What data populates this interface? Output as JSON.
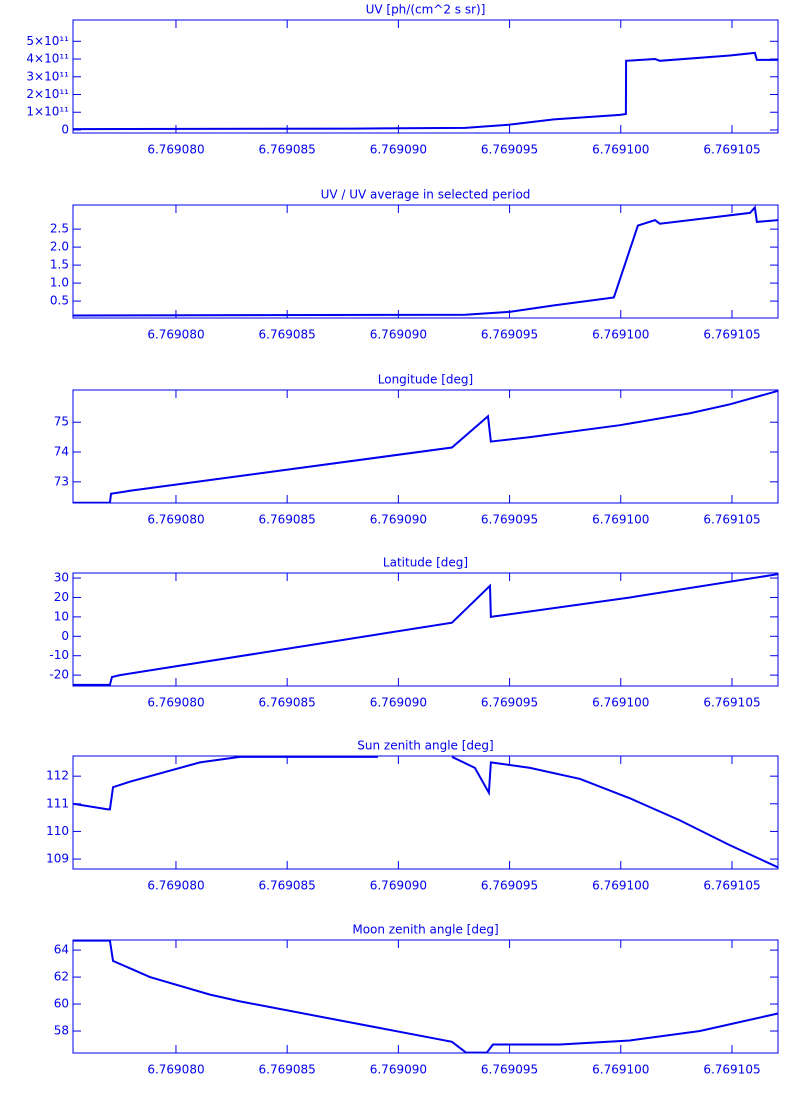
{
  "chart_data": [
    {
      "type": "line",
      "title": "UV [ph/(cm^2 s sr)]",
      "x": [
        6.76907537,
        6.769088,
        6.769093,
        6.769095,
        6.769097,
        6.76909996,
        6.76910023,
        6.76910024,
        6.76910154,
        6.76910176,
        6.76910491,
        6.76910603,
        6.76910612,
        6.76910707
      ],
      "series": [
        {
          "color": "#0000ee",
          "values": [
            5000000000,
            8000000000,
            12000000000,
            30000000000,
            60000000000,
            85000000000,
            90000000000,
            390000000000,
            400000000000,
            390000000000,
            420000000000,
            435000000000,
            395000000000,
            395000000000
          ]
        }
      ],
      "xlim": [
        6.76907537,
        6.76910707
      ],
      "xticks": [
        {
          "value": 6.76908,
          "label": "6.769080"
        },
        {
          "value": 6.769085,
          "label": "6.769085"
        },
        {
          "value": 6.76909,
          "label": "6.769090"
        },
        {
          "value": 6.769095,
          "label": "6.769095"
        },
        {
          "value": 6.7691,
          "label": "6.769100"
        },
        {
          "value": 6.769105,
          "label": "6.769105"
        }
      ],
      "ylim": [
        -17000000000,
        620000000000
      ],
      "yticks": [
        0,
        {
          "value": 100000000000,
          "label": "1×10¹¹"
        },
        {
          "value": 200000000000,
          "label": "2×10¹¹"
        },
        {
          "value": 300000000000,
          "label": "3×10¹¹"
        },
        {
          "value": 400000000000,
          "label": "4×10¹¹"
        },
        {
          "value": 500000000000,
          "label": "5×10¹¹"
        }
      ]
    },
    {
      "type": "line",
      "title": "UV / UV average in selected period",
      "x": [
        6.76907537,
        6.769093,
        6.769095,
        6.769097,
        6.76909969,
        6.76910077,
        6.76910154,
        6.76910176,
        6.76910581,
        6.76910603,
        6.76910612,
        6.76910707
      ],
      "series": [
        {
          "color": "#0000ee",
          "values": [
            0.1,
            0.12,
            0.2,
            0.38,
            0.6,
            2.6,
            2.75,
            2.65,
            2.95,
            3.1,
            2.7,
            2.75
          ]
        }
      ],
      "xlim": [
        6.76907537,
        6.76910707
      ],
      "xticks": [
        {
          "value": 6.76908,
          "label": "6.769080"
        },
        {
          "value": 6.769085,
          "label": "6.769085"
        },
        {
          "value": 6.76909,
          "label": "6.769090"
        },
        {
          "value": 6.769095,
          "label": "6.769095"
        },
        {
          "value": 6.7691,
          "label": "6.769100"
        },
        {
          "value": 6.769105,
          "label": "6.769105"
        }
      ],
      "ylim": [
        0.03,
        3.17
      ],
      "yticks": [
        0.5,
        {
          "value": 1,
          "label": "1.0"
        },
        1.5,
        {
          "value": 2,
          "label": "2.0"
        },
        2.5
      ]
    },
    {
      "type": "line",
      "title": "Longitude [deg]",
      "x": [
        6.76907537,
        6.76907703,
        6.76907708,
        6.76907793,
        6.76909241,
        6.76909403,
        6.76909416,
        6.76909592,
        6.76909996,
        6.76910311,
        6.76910491,
        6.76910707
      ],
      "series": [
        {
          "color": "#0000ee",
          "values": [
            72.3,
            72.3,
            72.6,
            72.7,
            74.15,
            75.2,
            74.35,
            74.5,
            74.9,
            75.3,
            75.6,
            76.05
          ]
        }
      ],
      "xlim": [
        6.76907537,
        6.76910707
      ],
      "xticks": [
        {
          "value": 6.76908,
          "label": "6.769080"
        },
        {
          "value": 6.769085,
          "label": "6.769085"
        },
        {
          "value": 6.76909,
          "label": "6.769090"
        },
        {
          "value": 6.769095,
          "label": "6.769095"
        },
        {
          "value": 6.7691,
          "label": "6.769100"
        },
        {
          "value": 6.769105,
          "label": "6.769105"
        }
      ],
      "ylim": [
        72.29,
        76.08
      ],
      "yticks": [
        73,
        74,
        75
      ]
    },
    {
      "type": "line",
      "title": "Latitude [deg]",
      "x": [
        6.76907537,
        6.76907703,
        6.76907712,
        6.76907748,
        6.76909241,
        6.76909412,
        6.76909416,
        6.76910041,
        6.76910707
      ],
      "series": [
        {
          "color": "#0000ee",
          "values": [
            -25,
            -25,
            -21,
            -20,
            7,
            26,
            10,
            20,
            32
          ]
        }
      ],
      "xlim": [
        6.76907537,
        6.76910707
      ],
      "xticks": [
        {
          "value": 6.76908,
          "label": "6.769080"
        },
        {
          "value": 6.769085,
          "label": "6.769085"
        },
        {
          "value": 6.76909,
          "label": "6.769090"
        },
        {
          "value": 6.769095,
          "label": "6.769095"
        },
        {
          "value": 6.7691,
          "label": "6.769100"
        },
        {
          "value": 6.769105,
          "label": "6.769105"
        }
      ],
      "ylim": [
        -25.6,
        32.6
      ],
      "yticks": [
        -20,
        -10,
        0,
        10,
        20,
        30
      ]
    },
    {
      "type": "line",
      "title": "Sun zenith angle [deg]",
      "x": [
        6.76907537,
        6.76907694,
        6.76907703,
        6.76907717,
        6.76907793,
        6.76908108,
        6.76908288,
        6.76908908,
        6.76909,
        6.76909241,
        6.76909344,
        6.76909407,
        6.76909416,
        6.76909592,
        6.76909817,
        6.76910041,
        6.76910266,
        6.76910491,
        6.76910707
      ],
      "series": [
        {
          "color": "#0000ee",
          "values": [
            111,
            110.8,
            110.8,
            111.6,
            111.8,
            112.5,
            112.7,
            112.7,
            null,
            112.7,
            112.3,
            111.4,
            112.5,
            112.3,
            111.9,
            111.2,
            110.4,
            109.5,
            108.7
          ]
        }
      ],
      "xlim": [
        6.76907537,
        6.76910707
      ],
      "xticks": [
        {
          "value": 6.76908,
          "label": "6.769080"
        },
        {
          "value": 6.769085,
          "label": "6.769085"
        },
        {
          "value": 6.76909,
          "label": "6.769090"
        },
        {
          "value": 6.769095,
          "label": "6.769095"
        },
        {
          "value": 6.7691,
          "label": "6.769100"
        },
        {
          "value": 6.769105,
          "label": "6.769105"
        }
      ],
      "ylim": [
        108.64,
        112.73
      ],
      "yticks": [
        109,
        110,
        111,
        112
      ]
    },
    {
      "type": "line",
      "title": "Moon zenith angle [deg]",
      "x": [
        6.76907537,
        6.76907703,
        6.76907717,
        6.76907883,
        6.76908153,
        6.76908288,
        6.76909241,
        6.76909304,
        6.76909398,
        6.76909425,
        6.76909727,
        6.76910041,
        6.76910356,
        6.76910707
      ],
      "series": [
        {
          "color": "#0000ee",
          "values": [
            64.7,
            64.7,
            63.2,
            62,
            60.7,
            60.2,
            57.2,
            56.4,
            56.4,
            57,
            57,
            57.3,
            58,
            59.3
          ]
        }
      ],
      "xlim": [
        6.76907537,
        6.76910707
      ],
      "xticks": [
        {
          "value": 6.76908,
          "label": "6.769080"
        },
        {
          "value": 6.769085,
          "label": "6.769085"
        },
        {
          "value": 6.76909,
          "label": "6.769090"
        },
        {
          "value": 6.769095,
          "label": "6.769095"
        },
        {
          "value": 6.7691,
          "label": "6.769100"
        },
        {
          "value": 6.769105,
          "label": "6.769105"
        }
      ],
      "ylim": [
        56.37,
        64.75
      ],
      "yticks": [
        58,
        60,
        62,
        64
      ]
    }
  ]
}
